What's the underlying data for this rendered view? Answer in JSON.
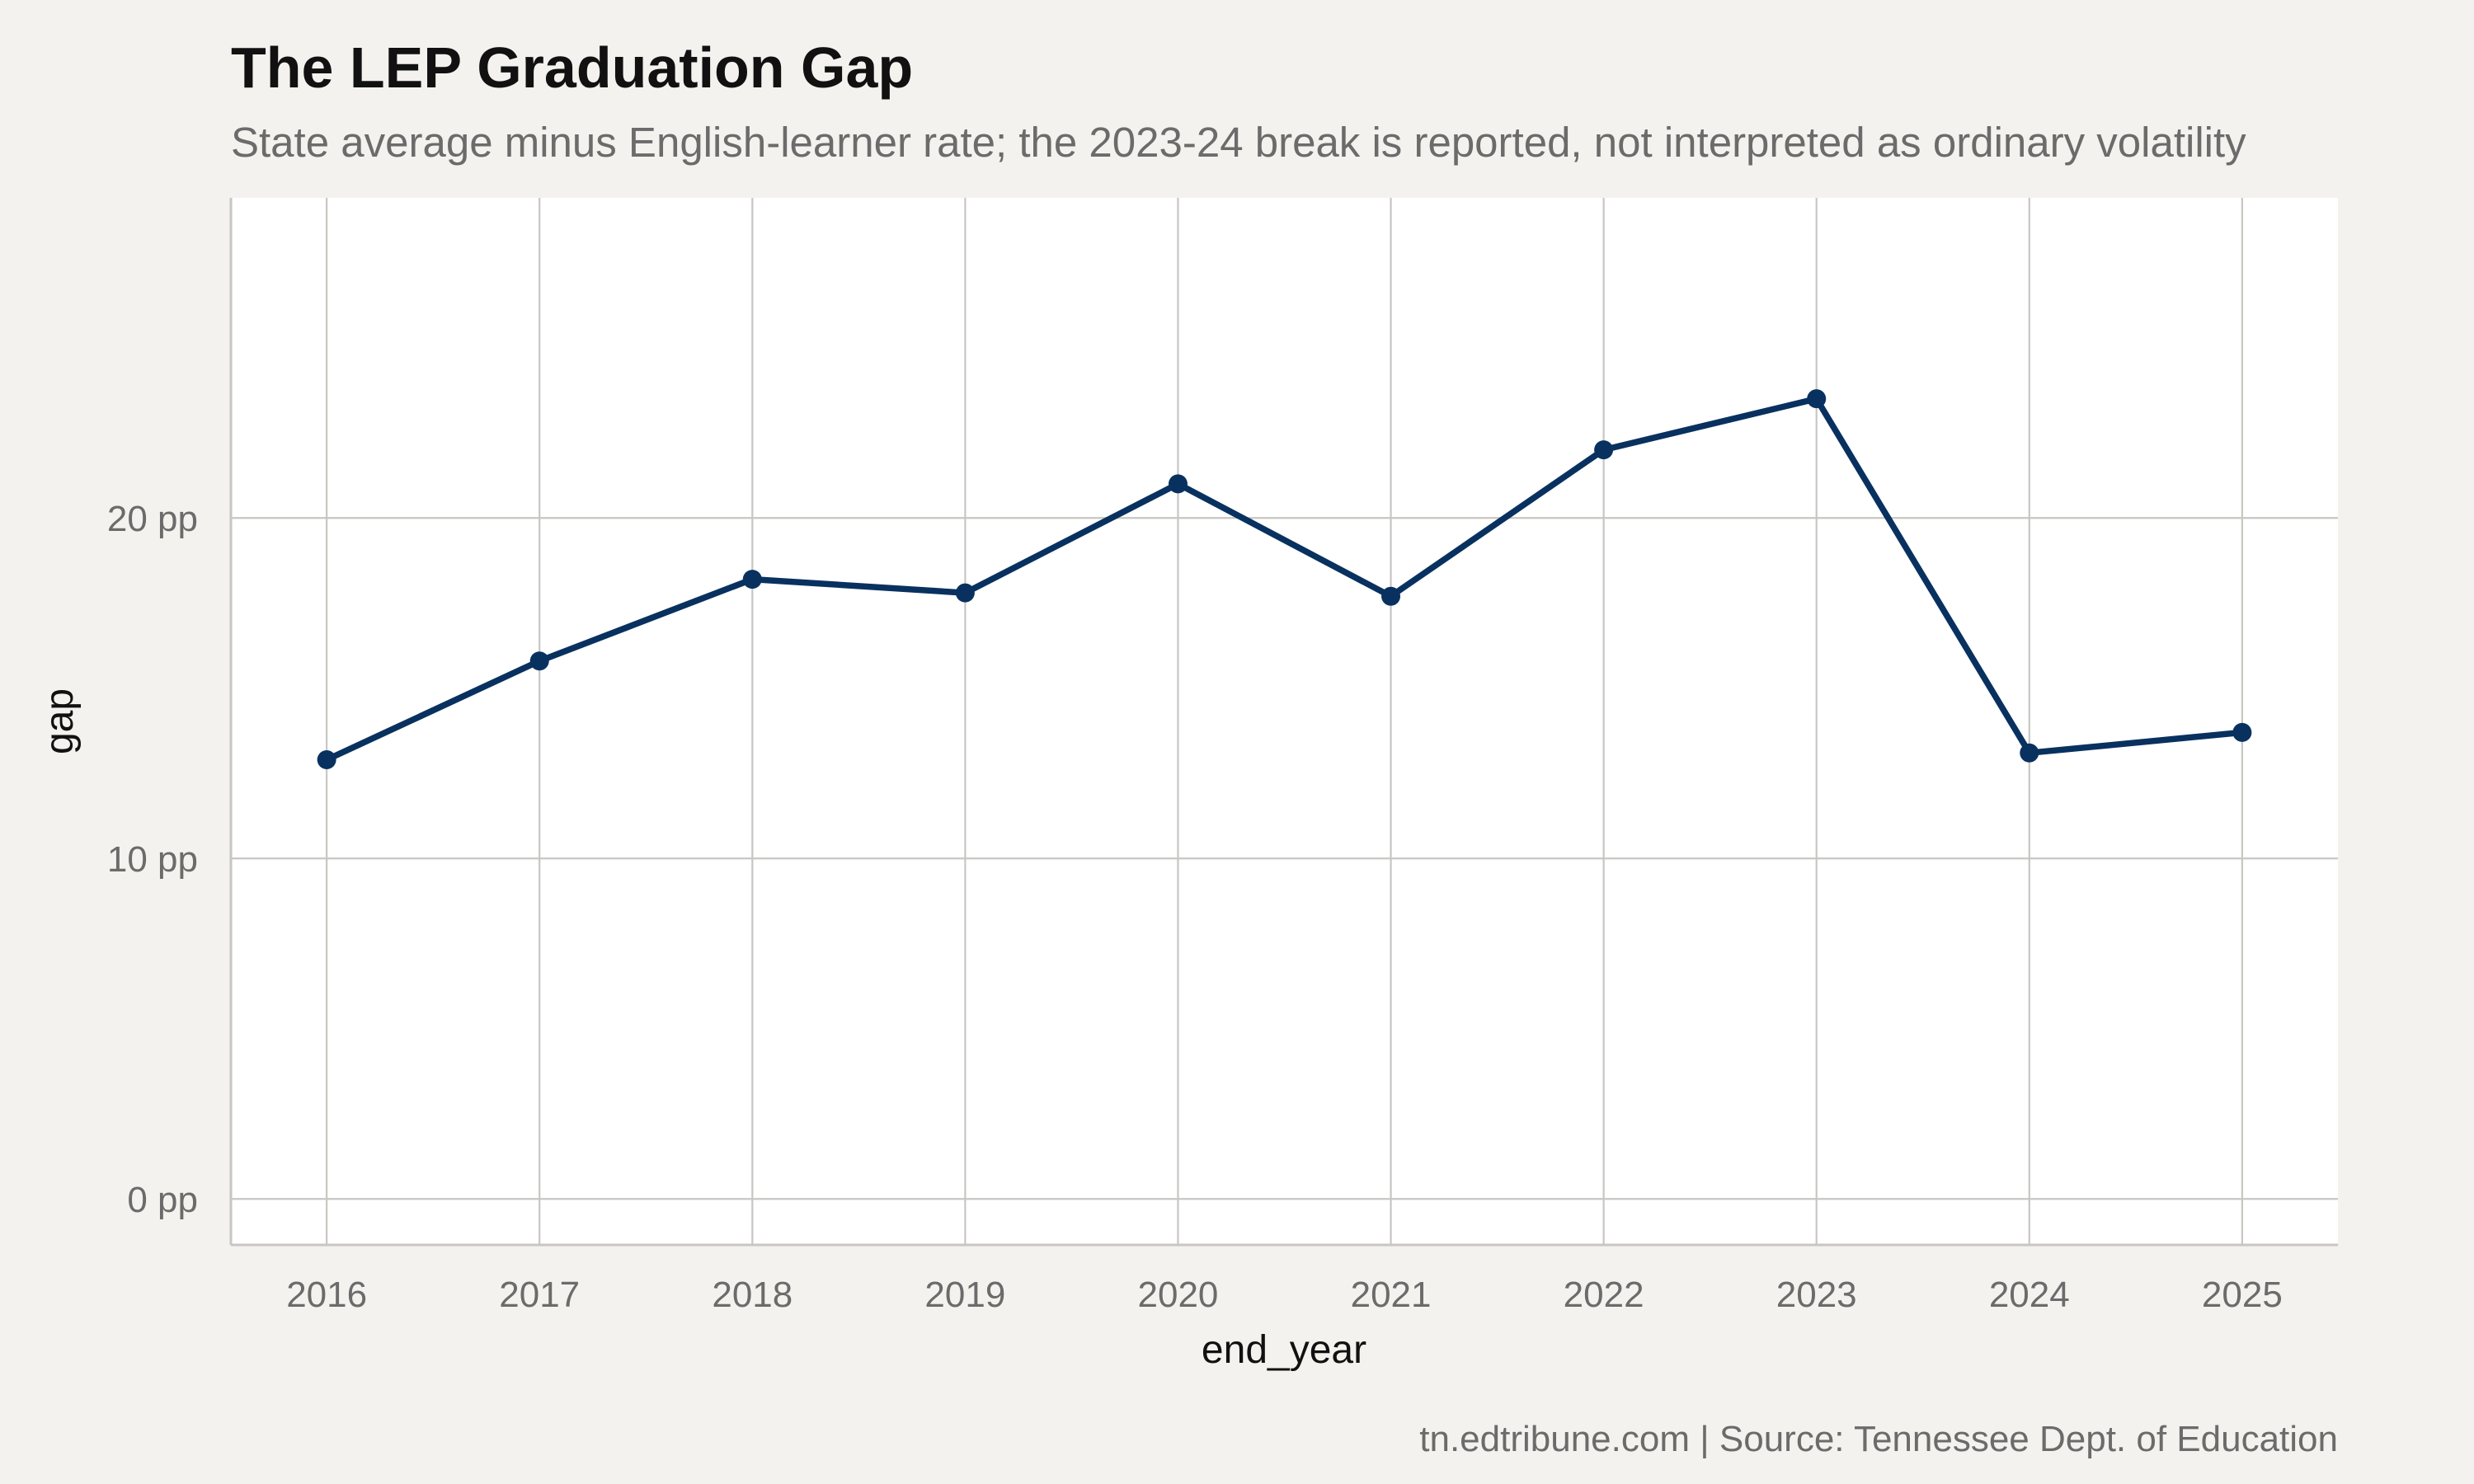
{
  "title": "The LEP Graduation Gap",
  "subtitle": "State average minus English-learner rate; the 2023-24 break is reported, not interpreted as ordinary volatility",
  "caption": "tn.edtribune.com | Source: Tennessee Dept. of Education",
  "colors": {
    "background": "#f4f2ee",
    "panel": "#ffffff",
    "grid": "#c8c6c2",
    "line": "#08315f",
    "title": "#111111",
    "subtitle": "#6b6b6b",
    "tick_text": "#6b6b6b",
    "axis_title": "#111111"
  },
  "chart_data": {
    "type": "line",
    "title": "The LEP Graduation Gap",
    "subtitle": "State average minus English-learner rate; the 2023-24 break is reported, not interpreted as ordinary volatility",
    "xlabel": "end_year",
    "ylabel": "gap",
    "x": [
      2016,
      2017,
      2018,
      2019,
      2020,
      2021,
      2022,
      2023,
      2024,
      2025
    ],
    "series": [
      {
        "values": [
          12.9,
          15.8,
          18.2,
          17.8,
          21.0,
          17.7,
          22.0,
          23.5,
          13.1,
          13.7
        ]
      }
    ],
    "xlim": [
      2015.55,
      2025.45
    ],
    "ylim": [
      -1.35,
      29.4
    ],
    "x_ticks": [
      2016,
      2017,
      2018,
      2019,
      2020,
      2021,
      2022,
      2023,
      2024,
      2025
    ],
    "x_tick_labels": [
      "2016",
      "2017",
      "2018",
      "2019",
      "2020",
      "2021",
      "2022",
      "2023",
      "2024",
      "2025"
    ],
    "y_ticks": [
      0,
      10,
      20
    ],
    "y_tick_labels": [
      "0 pp",
      "10 pp",
      "20 pp"
    ],
    "grid": true,
    "markers": true,
    "legend": "none"
  }
}
